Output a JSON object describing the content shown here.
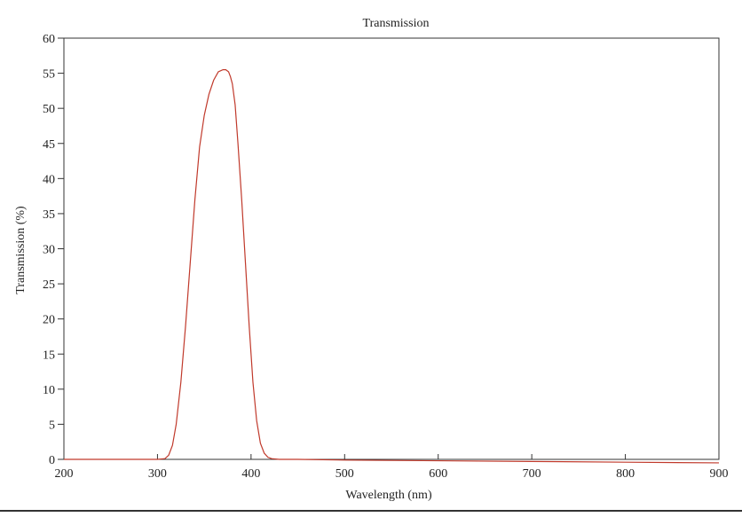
{
  "chart_data": {
    "type": "line",
    "title": "Transmission",
    "xlabel": "Wavelength (nm)",
    "ylabel": "Transmission (%)",
    "xlim": [
      200,
      900
    ],
    "ylim": [
      0,
      60
    ],
    "xticks": [
      200,
      300,
      400,
      500,
      600,
      700,
      800,
      900
    ],
    "yticks": [
      0,
      5,
      10,
      15,
      20,
      25,
      30,
      35,
      40,
      45,
      50,
      55,
      60
    ],
    "grid": false,
    "legend": "none",
    "line_color": "#c0392b",
    "series": [
      {
        "x": [
          200,
          300,
          308,
          312,
          316,
          320,
          325,
          330,
          335,
          340,
          345,
          350,
          355,
          360,
          365,
          370,
          373,
          376,
          378,
          380,
          383,
          386,
          390,
          394,
          398,
          402,
          406,
          410,
          414,
          418,
          422,
          430,
          450,
          500,
          600,
          700,
          800,
          900
        ],
        "y": [
          0,
          0,
          0.1,
          0.6,
          2.0,
          5.0,
          11.0,
          19.0,
          28.0,
          37.0,
          44.5,
          49.0,
          52.0,
          54.0,
          55.2,
          55.5,
          55.5,
          55.2,
          54.5,
          53.5,
          50.5,
          45.0,
          37.0,
          28.0,
          19.0,
          11.0,
          5.5,
          2.3,
          0.9,
          0.3,
          0.1,
          0,
          0,
          -0.1,
          -0.2,
          -0.3,
          -0.4,
          -0.5
        ]
      }
    ]
  }
}
